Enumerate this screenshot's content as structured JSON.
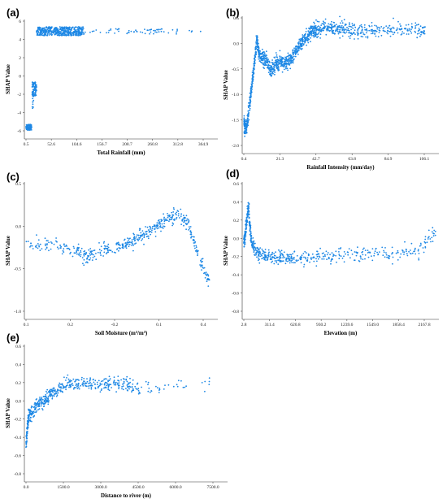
{
  "chart_data": [
    {
      "panel": "(a)",
      "type": "scatter",
      "xlabel": "Total Rainfall (mm)",
      "ylabel": "SHAP Value",
      "xticks": [
        "0.5",
        "52.6",
        "104.6",
        "156.7",
        "208.7",
        "260.8",
        "312.8",
        "364.9"
      ],
      "yticks": [
        "6",
        "4",
        "2",
        "0",
        "-2",
        "-4",
        "-6"
      ],
      "xlim": [
        0.5,
        385
      ],
      "ylim": [
        -7.5,
        6.8
      ],
      "point_color": "#1e88e5",
      "clusters": [
        {
          "x_range": [
            0.5,
            12
          ],
          "y_range": [
            -6.6,
            -5.9
          ],
          "count": 110
        },
        {
          "x_range": [
            13,
            22
          ],
          "y_range": [
            -2.4,
            -0.6
          ],
          "count": 90
        },
        {
          "x_range": [
            13,
            16
          ],
          "y_range": [
            -4.0,
            -2.6
          ],
          "count": 8
        },
        {
          "x_range": [
            22,
            118
          ],
          "y_range": [
            5.2,
            6.3
          ],
          "count": 480
        },
        {
          "x_range": [
            118,
            310
          ],
          "y_range": [
            5.4,
            6.1
          ],
          "count": 60
        },
        {
          "x_range": [
            325,
            375
          ],
          "y_range": [
            5.6,
            5.9
          ],
          "count": 4
        }
      ]
    },
    {
      "panel": "(b)",
      "type": "scatter",
      "xlabel": "Rainfall Intensity (mm/day)",
      "ylabel": "SHAP Value",
      "xticks": [
        "0.4",
        "21.3",
        "42.7",
        "63.8",
        "84.9",
        "106.1"
      ],
      "yticks": [
        "0.5",
        "0.0",
        "-0.5",
        "-1.0",
        "-1.5",
        "-2.0"
      ],
      "xlim": [
        0.4,
        112
      ],
      "ylim": [
        -2.0,
        0.85
      ],
      "point_color": "#1e88e5",
      "series": [
        {
          "name": "",
          "x": [
            0.5,
            1,
            2,
            3,
            4,
            5,
            6,
            7,
            8,
            9,
            10,
            12,
            14,
            16,
            18,
            20,
            22,
            24,
            26,
            28,
            30,
            32,
            34,
            36,
            38,
            40,
            42,
            44,
            48,
            52,
            56,
            60,
            66,
            72,
            80,
            90,
            100,
            106
          ],
          "y": [
            -1.35,
            -1.45,
            -1.5,
            -1.2,
            -0.9,
            -0.6,
            -0.3,
            0.05,
            0.4,
            0.2,
            0.05,
            0.0,
            -0.05,
            -0.25,
            -0.15,
            -0.1,
            -0.05,
            -0.1,
            -0.05,
            0.0,
            0.15,
            0.25,
            0.35,
            0.45,
            0.5,
            0.6,
            0.62,
            0.65,
            0.66,
            0.67,
            0.66,
            0.65,
            0.62,
            0.6,
            0.62,
            0.6,
            0.62,
            0.6
          ]
        }
      ]
    },
    {
      "panel": "(c)",
      "type": "scatter",
      "xlabel": "Soil Moisture (m³/m³)",
      "ylabel": "SHAP Value",
      "xticks": [
        "0.1",
        "0.2",
        "-0.2",
        "0.1",
        "0.4"
      ],
      "yticks": [
        "0.5",
        "0.0",
        "-0.5",
        "-1.0"
      ],
      "xlim": [
        0.1,
        0.47
      ],
      "ylim": [
        -1.4,
        0.75
      ],
      "point_color": "#1e88e5",
      "series": [
        {
          "name": "",
          "x": [
            0.1,
            0.15,
            0.2,
            0.22,
            0.25,
            0.28,
            0.3,
            0.32,
            0.34,
            0.36,
            0.38,
            0.4,
            0.42,
            0.44,
            0.46
          ],
          "y": [
            -0.2,
            -0.2,
            -0.35,
            -0.4,
            -0.3,
            -0.25,
            -0.2,
            -0.1,
            0.0,
            0.1,
            0.2,
            0.3,
            0.1,
            -0.45,
            -0.8
          ]
        }
      ]
    },
    {
      "panel": "(d)",
      "type": "scatter",
      "xlabel": "Elevation (m)",
      "ylabel": "SHAP Value",
      "xticks": [
        "2.8",
        "311.4",
        "620.8",
        "930.2",
        "1239.6",
        "1549.0",
        "1858.4",
        "2167.8"
      ],
      "yticks": [
        "0.6",
        "0.4",
        "0.2",
        "0.0",
        "-0.2",
        "-0.4",
        "-0.6",
        "-0.8"
      ],
      "xlim": [
        2.8,
        2400
      ],
      "ylim": [
        -0.85,
        0.7
      ],
      "point_color": "#1e88e5",
      "series": [
        {
          "name": "",
          "x": [
            2.8,
            20,
            40,
            60,
            80,
            100,
            140,
            200,
            300,
            400,
            500,
            620,
            800,
            1000,
            1240,
            1549,
            1858,
            2168,
            2400
          ],
          "y": [
            0.05,
            0.1,
            0.3,
            0.45,
            0.2,
            0.05,
            -0.05,
            -0.1,
            -0.12,
            -0.15,
            -0.15,
            -0.15,
            -0.15,
            -0.13,
            -0.12,
            -0.1,
            -0.1,
            -0.08,
            0.15
          ]
        }
      ]
    },
    {
      "panel": "(e)",
      "type": "scatter",
      "xlabel": "Distance to river (m)",
      "ylabel": "SHAP Value",
      "xticks": [
        "0.0",
        "1500.0",
        "3000.0",
        "4500.0",
        "6000.0",
        "7500.0"
      ],
      "yticks": [
        "0.6",
        "0.4",
        "0.2",
        "0.0",
        "-0.2",
        "-0.4",
        "-0.6",
        "-0.8"
      ],
      "xlim": [
        0,
        7900
      ],
      "ylim": [
        -0.8,
        0.65
      ],
      "point_color": "#1e88e5",
      "series": [
        {
          "name": "",
          "x": [
            0,
            50,
            100,
            200,
            400,
            600,
            800,
            1000,
            1300,
            1600,
            2000,
            2500,
            3000,
            3500,
            4000,
            4500,
            7400
          ],
          "y": [
            -0.4,
            -0.25,
            -0.1,
            -0.05,
            0.0,
            0.05,
            0.1,
            0.15,
            0.2,
            0.25,
            0.25,
            0.25,
            0.25,
            0.25,
            0.25,
            0.2,
            0.25
          ]
        }
      ]
    }
  ]
}
